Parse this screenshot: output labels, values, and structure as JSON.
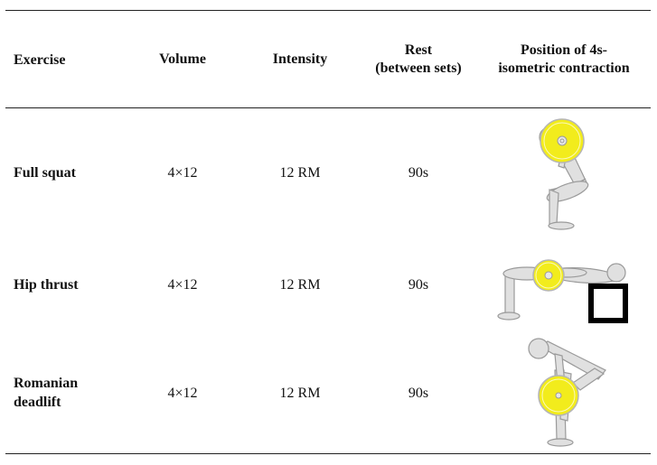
{
  "table": {
    "headers": {
      "exercise": "Exercise",
      "volume": "Volume",
      "intensity": "Intensity",
      "rest_line1": "Rest",
      "rest_line2": "(between sets)",
      "position_line1": "Position of 4s-",
      "position_line2": "isometric contraction"
    },
    "rows": [
      {
        "exercise": "Full squat",
        "volume": "4×12",
        "intensity": "12 RM",
        "rest": "90s",
        "figure": "full-squat-figure"
      },
      {
        "exercise": "Hip thrust",
        "volume": "4×12",
        "intensity": "12 RM",
        "rest": "90s",
        "figure": "hip-thrust-figure"
      },
      {
        "exercise_line1": "Romanian",
        "exercise_line2": "deadlift",
        "volume": "4×12",
        "intensity": "12 RM",
        "rest": "90s",
        "figure": "romanian-deadlift-figure"
      }
    ]
  },
  "colors": {
    "plate": "#f2ec1c",
    "body": "#e0e0e0",
    "outline": "#9a9a9a",
    "bench": "#000000"
  }
}
